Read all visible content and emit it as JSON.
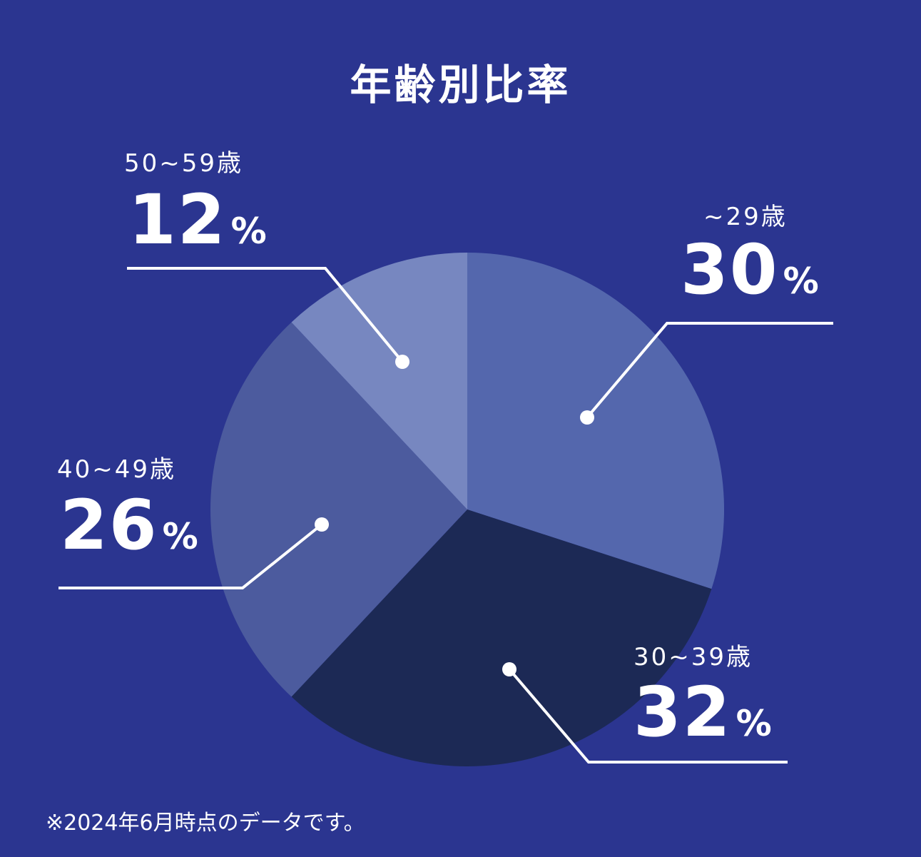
{
  "title": "年齢別比率",
  "chart_data": {
    "type": "pie",
    "title": "年齢別比率",
    "start_angle_deg": 0,
    "direction": "clockwise",
    "slices": [
      {
        "label": "~29歳",
        "value": 30,
        "value_label": "30",
        "unit": "%",
        "color": "#5467ad"
      },
      {
        "label": "30~39歳",
        "value": 32,
        "value_label": "32",
        "unit": "%",
        "color": "#1c2955"
      },
      {
        "label": "40~49歳",
        "value": 26,
        "value_label": "26",
        "unit": "%",
        "color": "#4c5b9e"
      },
      {
        "label": "50~59歳",
        "value": 12,
        "value_label": "12",
        "unit": "%",
        "color": "#7787c0"
      }
    ]
  },
  "note": "※2024年6月時点のデータです。"
}
